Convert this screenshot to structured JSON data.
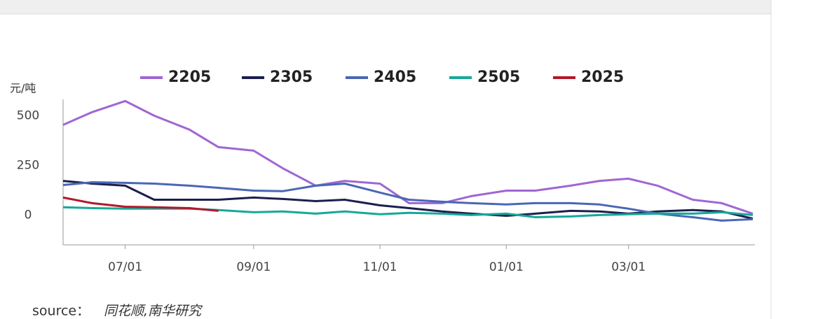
{
  "chart_data": {
    "type": "line",
    "y_label": "元/吨",
    "source_label": "source：",
    "source": "同花顺,南华研究",
    "x": [
      "06/01",
      "06/15",
      "07/01",
      "07/15",
      "08/01",
      "08/15",
      "09/01",
      "09/15",
      "10/01",
      "10/15",
      "11/01",
      "11/15",
      "12/01",
      "12/15",
      "01/01",
      "01/15",
      "02/01",
      "02/15",
      "03/01",
      "03/15",
      "04/01",
      "04/15",
      "04/30"
    ],
    "xlim": [
      "06/01",
      "04/30"
    ],
    "xticks": [
      "07/01",
      "09/01",
      "11/01",
      "01/01",
      "03/01"
    ],
    "ylim": [
      -150,
      600
    ],
    "yticks": [
      0,
      250,
      500
    ],
    "series": [
      {
        "name": "2205",
        "color": "#a066d3",
        "values": [
          454,
          518,
          574,
          500,
          430,
          342,
          324,
          236,
          148,
          172,
          158,
          60,
          60,
          95,
          123,
          123,
          148,
          172,
          183,
          148,
          77,
          60,
          7
        ]
      },
      {
        "name": "2305",
        "color": "#1c1f4d",
        "values": [
          172,
          158,
          148,
          77,
          77,
          77,
          88,
          81,
          70,
          77,
          49,
          35,
          18,
          7,
          -4,
          7,
          21,
          18,
          7,
          18,
          25,
          18,
          -18
        ]
      },
      {
        "name": "2405",
        "color": "#4a67b5",
        "values": [
          151,
          165,
          162,
          158,
          148,
          137,
          123,
          120,
          148,
          158,
          113,
          77,
          67,
          60,
          53,
          60,
          60,
          53,
          32,
          7,
          -11,
          -28,
          -21
        ]
      },
      {
        "name": "2505",
        "color": "#17a899",
        "values": [
          39,
          35,
          32,
          32,
          32,
          25,
          14,
          18,
          7,
          18,
          4,
          11,
          7,
          0,
          7,
          -11,
          -7,
          0,
          4,
          7,
          7,
          14,
          0
        ]
      },
      {
        "name": "2025",
        "color": "#b0192b",
        "values": [
          88,
          60,
          42,
          39,
          35,
          21,
          null,
          null,
          null,
          null,
          null,
          null,
          null,
          null,
          null,
          null,
          null,
          null,
          null,
          null,
          null,
          null,
          null
        ]
      }
    ]
  }
}
